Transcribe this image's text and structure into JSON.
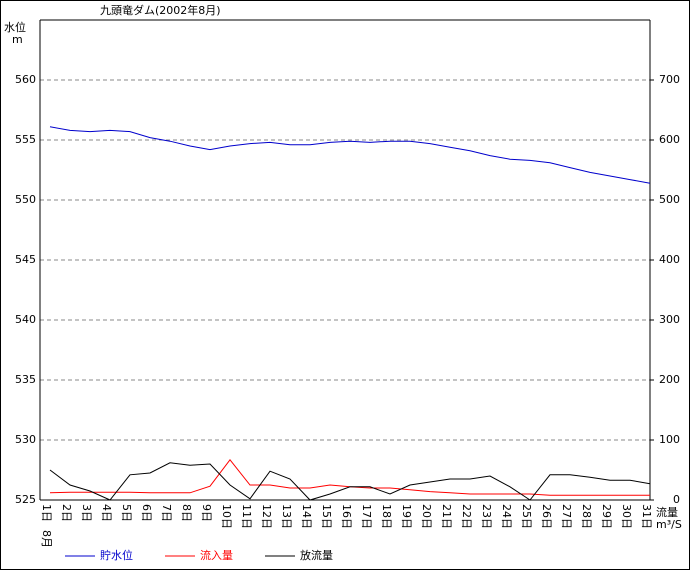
{
  "chart_data": {
    "type": "line",
    "title": "九頭竜ダム(2002年8月)",
    "y_label": "水位",
    "y_unit": "m",
    "y2_label": "流量",
    "y2_unit": "m³/S",
    "x_group_label": "8月",
    "categories": [
      "1日",
      "2日",
      "3日",
      "4日",
      "5日",
      "6日",
      "7日",
      "8日",
      "9日",
      "10日",
      "11日",
      "12日",
      "13日",
      "14日",
      "15日",
      "16日",
      "17日",
      "18日",
      "19日",
      "20日",
      "21日",
      "22日",
      "23日",
      "24日",
      "25日",
      "26日",
      "27日",
      "28日",
      "29日",
      "30日",
      "31日"
    ],
    "ylim": [
      525,
      565
    ],
    "yticks": [
      525,
      530,
      535,
      540,
      545,
      550,
      555,
      560
    ],
    "y2lim": [
      0,
      800
    ],
    "y2ticks": [
      0,
      100,
      200,
      300,
      400,
      500,
      600,
      700
    ],
    "grid": true,
    "series": [
      {
        "name": "貯水位",
        "color": "#0000cc",
        "values": [
          556.1,
          555.8,
          555.7,
          555.8,
          555.7,
          555.2,
          554.9,
          554.5,
          554.2,
          554.5,
          554.7,
          554.8,
          554.6,
          554.6,
          554.8,
          554.9,
          554.8,
          554.9,
          554.9,
          554.7,
          554.4,
          554.1,
          553.7,
          553.4,
          553.3,
          553.1,
          552.7,
          552.3,
          552.0,
          551.7,
          551.4
        ]
      },
      {
        "name": "流入量",
        "color": "#ff0000",
        "axis": "y2",
        "values": [
          12,
          13,
          13,
          13,
          13,
          12,
          12,
          12,
          23,
          67,
          25,
          25,
          20,
          20,
          25,
          22,
          20,
          20,
          17,
          14,
          12,
          10,
          10,
          10,
          10,
          8,
          8,
          8,
          8,
          8,
          8
        ]
      },
      {
        "name": "放流量",
        "color": "#000000",
        "axis": "y2",
        "values": [
          50,
          25,
          15,
          0,
          42,
          45,
          62,
          58,
          60,
          25,
          2,
          48,
          35,
          0,
          10,
          22,
          22,
          10,
          25,
          30,
          35,
          35,
          40,
          22,
          0,
          42,
          42,
          38,
          33,
          33,
          27
        ]
      }
    ]
  }
}
